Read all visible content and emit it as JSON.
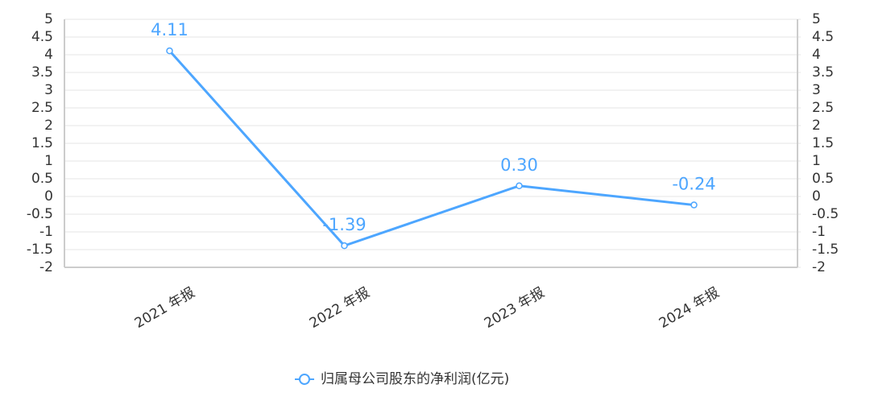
{
  "chart_data": {
    "type": "line",
    "categories": [
      "2021 年报",
      "2022 年报",
      "2023 年报",
      "2024 年报"
    ],
    "series": [
      {
        "name": "归属母公司股东的净利润(亿元)",
        "color": "#4da6ff",
        "values": [
          4.11,
          -1.39,
          0.3,
          -0.24
        ],
        "value_labels": [
          "4.11",
          "-1.39",
          "0.30",
          "-0.24"
        ]
      }
    ],
    "ylim": [
      -2,
      5
    ],
    "yticks": [
      -2,
      -1.5,
      -1,
      -0.5,
      0,
      0.5,
      1,
      1.5,
      2,
      2.5,
      3,
      3.5,
      4,
      4.5,
      5
    ],
    "y2lim": [
      -2,
      5
    ],
    "y2ticks": [
      -2,
      -1.5,
      -1,
      -0.5,
      0,
      0.5,
      1,
      1.5,
      2,
      2.5,
      3,
      3.5,
      4,
      4.5,
      5
    ],
    "grid": true,
    "legend": "bottom"
  }
}
